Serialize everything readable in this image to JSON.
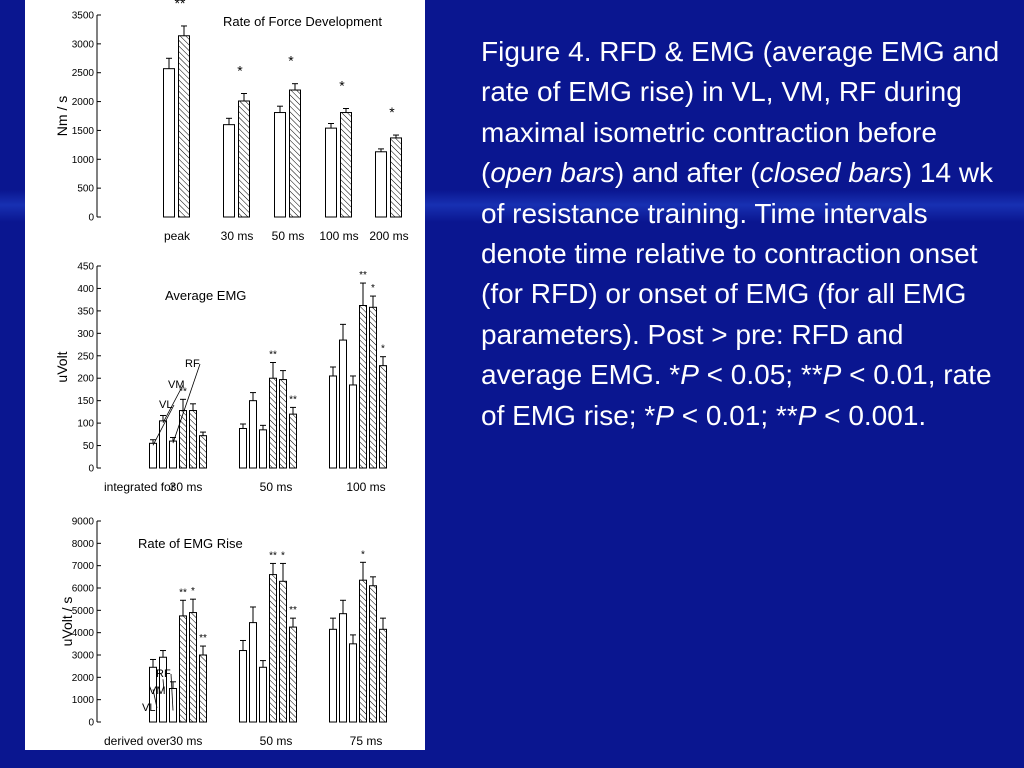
{
  "caption": {
    "p1": "Figure 4. RFD & EMG (average EMG and rate of EMG rise) in VL, VM, RF during maximal isometric contraction before (",
    "open": "open bars",
    "p2": ") and after (",
    "closed": "closed bars",
    "p3": ") 14 wk of resistance training. Time intervals denote time relative to contraction onset (for RFD) or onset of EMG (for all EMG parameters). Post > pre: RFD and average EMG. *",
    "P1": "P",
    "p4": " < 0.05; **",
    "P2": "P",
    "p5": " < 0.01, rate of EMG rise; *",
    "P3": "P",
    "p6": " < 0.01; **",
    "P4": "P",
    "p7": " < 0.001."
  },
  "colors": {
    "background": "#0a1690",
    "panel": "#ffffff",
    "text": "#ffffff",
    "ink": "#000000"
  },
  "chart_data": [
    {
      "type": "bar",
      "title": "Rate of Force Development",
      "ylabel": "Nm / s",
      "ylim": [
        0,
        3500
      ],
      "yticks": [
        0,
        500,
        1000,
        1500,
        2000,
        2500,
        3000,
        3500
      ],
      "categories": [
        "peak",
        "30 ms",
        "50 ms",
        "100 ms",
        "200 ms"
      ],
      "series": [
        {
          "fill": "open",
          "values": [
            2570,
            1600,
            1810,
            1540,
            1130
          ],
          "err": [
            180,
            110,
            110,
            80,
            50
          ]
        },
        {
          "fill": "hatched",
          "values": [
            3140,
            2010,
            2200,
            1810,
            1370
          ],
          "err": [
            170,
            130,
            110,
            70,
            50
          ]
        }
      ],
      "sig": [
        "**",
        "*",
        "*",
        "*",
        "*"
      ]
    },
    {
      "type": "bar",
      "title": "Average EMG",
      "ylabel": "uVolt",
      "ylim": [
        0,
        450
      ],
      "yticks": [
        0,
        50,
        100,
        150,
        200,
        250,
        300,
        350,
        400,
        450
      ],
      "xprefix": "integrated for",
      "categories": [
        "30 ms",
        "50 ms",
        "100 ms"
      ],
      "bar_labels": [
        "VL",
        "VM",
        "RF"
      ],
      "series": [
        {
          "fill": "open",
          "values": [
            [
              55,
              105,
              60
            ],
            [
              88,
              150,
              85
            ],
            [
              205,
              285,
              185
            ]
          ],
          "err": [
            [
              8,
              12,
              8
            ],
            [
              10,
              18,
              10
            ],
            [
              20,
              35,
              20
            ]
          ]
        },
        {
          "fill": "hatched",
          "values": [
            [
              128,
              128,
              72
            ],
            [
              200,
              197,
              120
            ],
            [
              362,
              358,
              228
            ]
          ],
          "err": [
            [
              25,
              15,
              8
            ],
            [
              35,
              20,
              15
            ],
            [
              50,
              25,
              20
            ]
          ]
        }
      ],
      "sig": [
        [
          "**",
          "",
          ""
        ],
        [
          "**",
          "",
          "**"
        ],
        [
          "**",
          "*",
          "*"
        ]
      ]
    },
    {
      "type": "bar",
      "title": "Rate of EMG Rise",
      "ylabel": "uVolt / s",
      "ylim": [
        0,
        9000
      ],
      "yticks": [
        0,
        1000,
        2000,
        3000,
        4000,
        5000,
        6000,
        7000,
        8000,
        9000
      ],
      "xprefix": "derived over",
      "categories": [
        "30 ms",
        "50 ms",
        "75 ms"
      ],
      "bar_labels": [
        "VL",
        "VM",
        "RF"
      ],
      "series": [
        {
          "fill": "open",
          "values": [
            [
              2450,
              2900,
              1500
            ],
            [
              3200,
              4450,
              2450
            ],
            [
              4150,
              4850,
              3500
            ]
          ],
          "err": [
            [
              350,
              300,
              300
            ],
            [
              450,
              700,
              300
            ],
            [
              500,
              600,
              400
            ]
          ]
        },
        {
          "fill": "hatched",
          "values": [
            [
              4750,
              4900,
              3000
            ],
            [
              6600,
              6300,
              4250
            ],
            [
              6350,
              6100,
              4150
            ]
          ],
          "err": [
            [
              700,
              600,
              400
            ],
            [
              500,
              800,
              400
            ],
            [
              800,
              400,
              500
            ]
          ]
        }
      ],
      "sig": [
        [
          "**",
          "*",
          "**"
        ],
        [
          "**",
          "*",
          "**"
        ],
        [
          "*",
          "",
          ""
        ]
      ]
    }
  ]
}
